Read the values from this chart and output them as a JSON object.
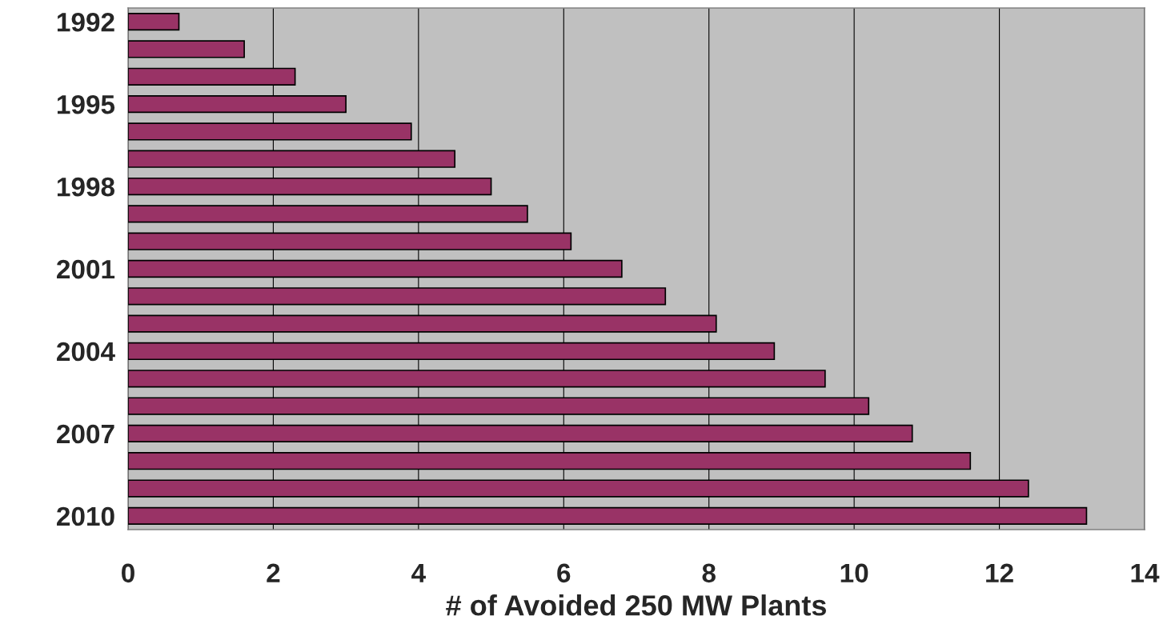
{
  "chart_data": {
    "type": "bar",
    "orientation": "horizontal",
    "xlabel": "# of Avoided 250 MW Plants",
    "categories": [
      "1992",
      null,
      null,
      "1995",
      null,
      null,
      "1998",
      null,
      null,
      "2001",
      null,
      null,
      "2004",
      null,
      null,
      "2007",
      null,
      null,
      "2010"
    ],
    "values": [
      0.7,
      1.6,
      2.3,
      3.0,
      3.9,
      4.5,
      5.0,
      5.5,
      6.1,
      6.8,
      7.4,
      8.1,
      8.9,
      9.6,
      10.2,
      10.8,
      11.6,
      12.4,
      13.2
    ],
    "color": "#993366",
    "xlim": [
      0,
      14
    ],
    "xticks": [
      0,
      2,
      4,
      6,
      8,
      10,
      12,
      14
    ],
    "grid": "x"
  }
}
